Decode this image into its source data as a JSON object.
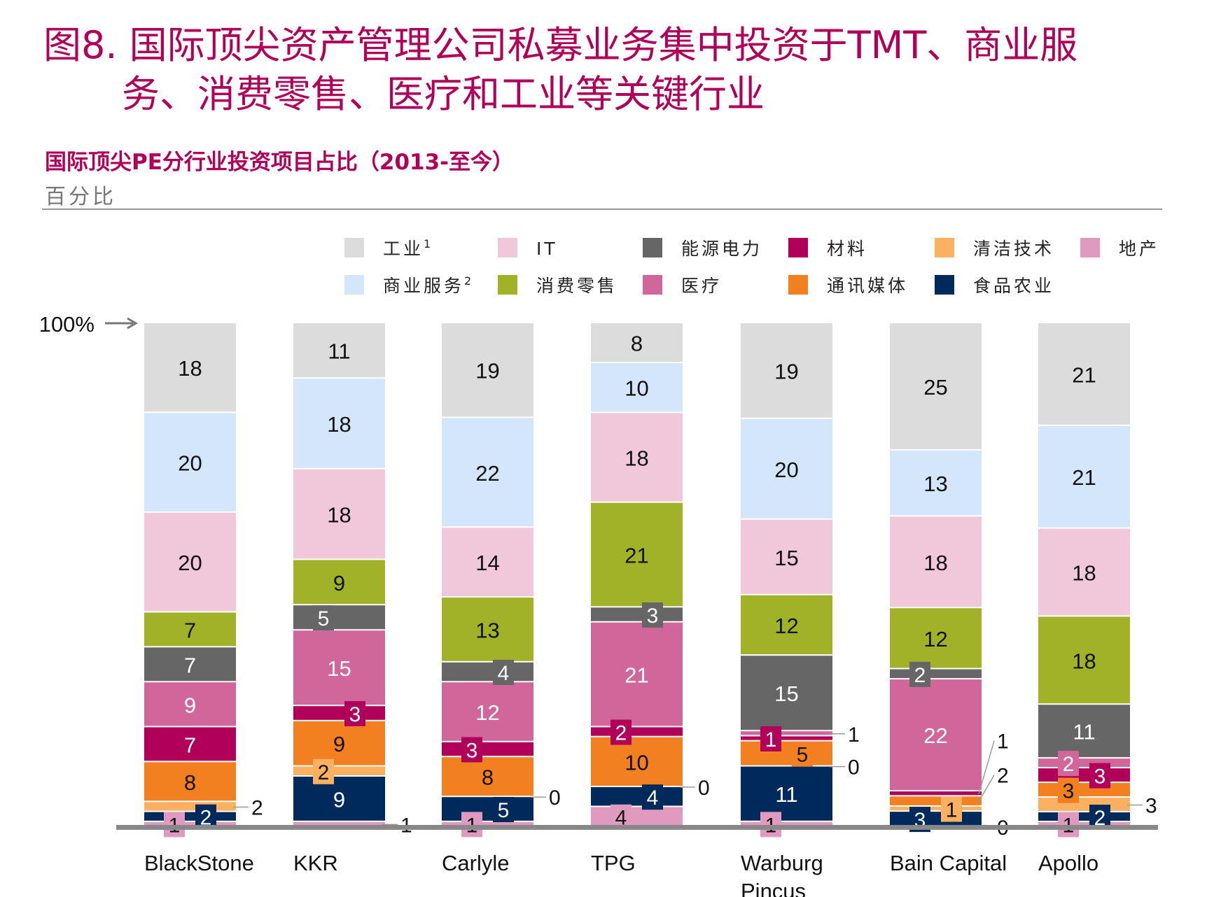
{
  "title_line1": "图8. 国际顶尖资产管理公司私募业务集中投资于TMT、商业服",
  "title_line2": "务、消费零售、医疗和工业等关键行业",
  "chart_data": {
    "type": "bar",
    "stacked": true,
    "title": "国际顶尖PE分行业投资项目占比（2013-至今）",
    "ylabel": "百分比",
    "top_marker": "100%",
    "ylim": [
      0,
      100
    ],
    "legend_placement": "top",
    "grid": false,
    "categories": [
      "BlackStone",
      "KKR",
      "Carlyle",
      "TPG",
      "Warburg Pincus",
      "Bain Capital",
      "Apollo"
    ],
    "series": [
      {
        "name": "工业",
        "sup": "1",
        "color": "#dcdcdc",
        "values": [
          18,
          11,
          19,
          8,
          19,
          25,
          21
        ]
      },
      {
        "name": "商业服务",
        "sup": "2",
        "color": "#d4e6fc",
        "values": [
          20,
          18,
          22,
          10,
          20,
          13,
          21
        ]
      },
      {
        "name": "IT",
        "color": "#f0c8da",
        "values": [
          20,
          18,
          14,
          18,
          15,
          18,
          18
        ]
      },
      {
        "name": "消费零售",
        "color": "#a2b228",
        "values": [
          7,
          9,
          13,
          21,
          12,
          12,
          18
        ]
      },
      {
        "name": "能源电力",
        "color": "#666666",
        "values": [
          7,
          5,
          4,
          3,
          15,
          2,
          11
        ]
      },
      {
        "name": "医疗",
        "color": "#d06699",
        "values": [
          9,
          15,
          12,
          21,
          1,
          22,
          2
        ]
      },
      {
        "name": "材料",
        "color": "#b0005a",
        "values": [
          7,
          3,
          3,
          2,
          1,
          1,
          3
        ]
      },
      {
        "name": "通讯媒体",
        "color": "#f28020",
        "values": [
          8,
          9,
          8,
          10,
          5,
          2,
          3
        ]
      },
      {
        "name": "清洁技术",
        "color": "#fcb060",
        "values": [
          2,
          2,
          0,
          0,
          0,
          1,
          3
        ]
      },
      {
        "name": "食品农业",
        "color": "#002a5c",
        "values": [
          2,
          9,
          5,
          4,
          11,
          3,
          2
        ]
      },
      {
        "name": "地产",
        "color": "#e09abf",
        "values": [
          1,
          1,
          1,
          4,
          1,
          0,
          1
        ]
      }
    ],
    "legend_order": [
      "工业",
      "IT",
      "能源电力",
      "材料",
      "清洁技术",
      "地产",
      "商业服务",
      "消费零售",
      "医疗",
      "通讯媒体",
      "食品农业"
    ],
    "title_color": "#b0005a"
  }
}
